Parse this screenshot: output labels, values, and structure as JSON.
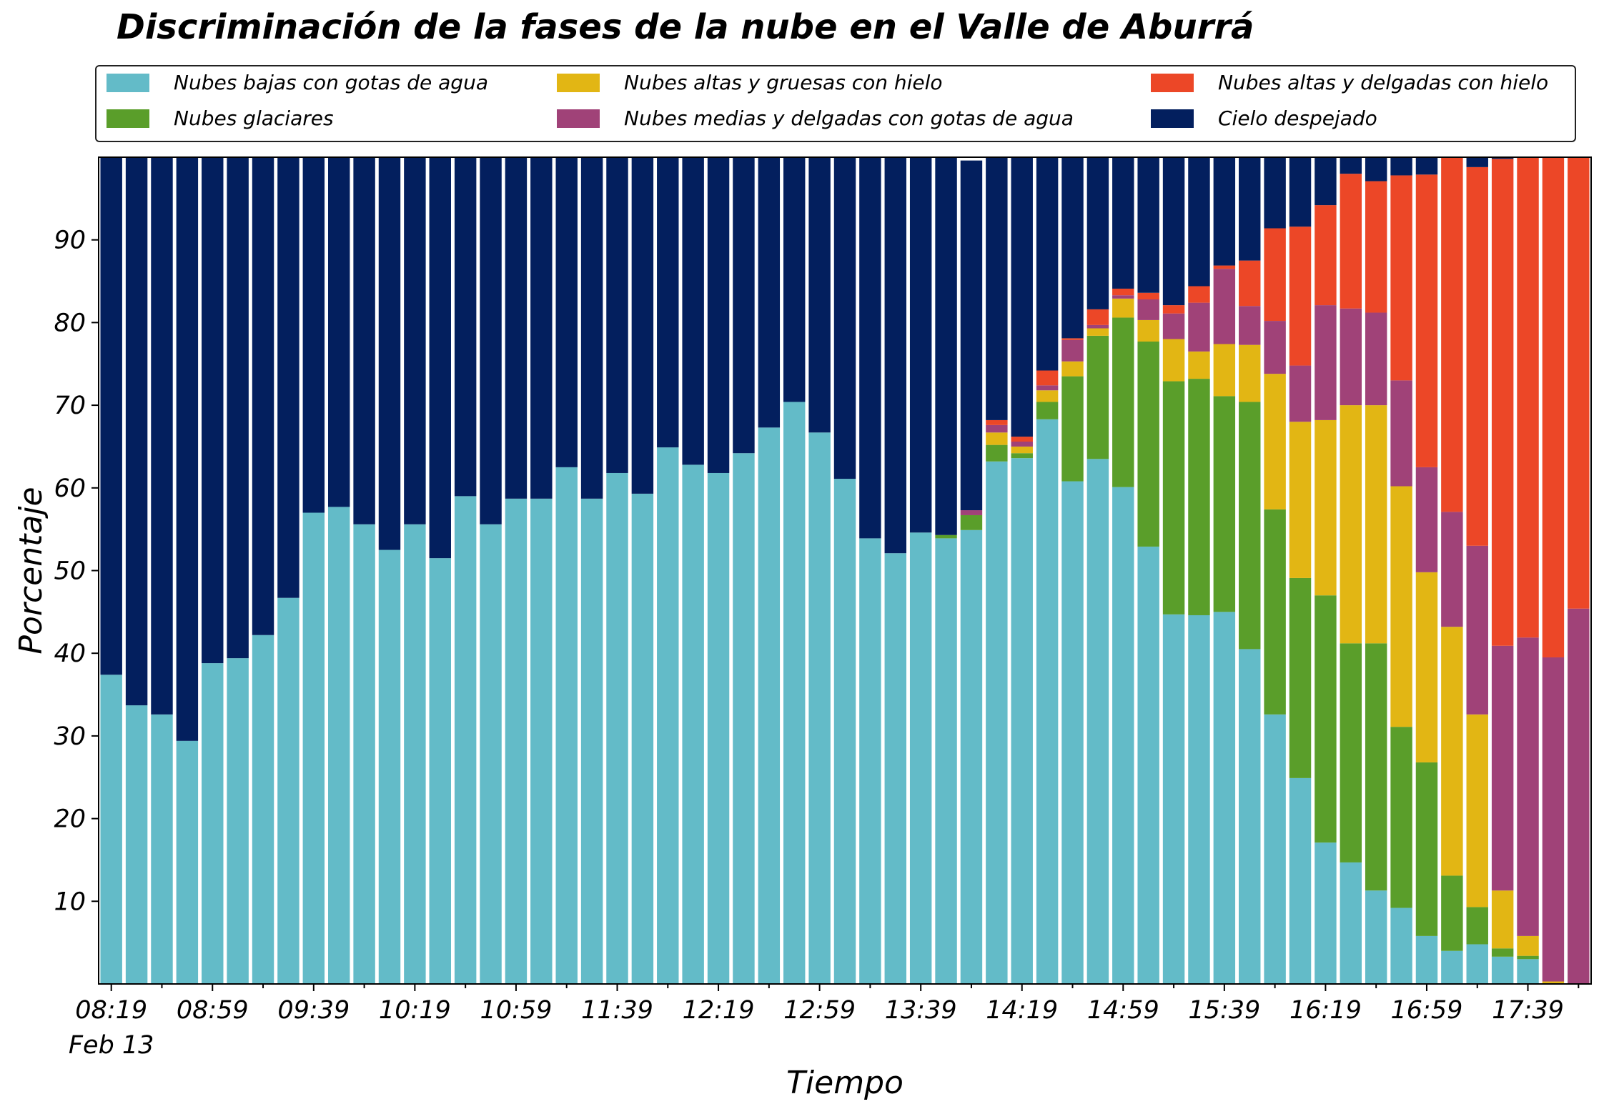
{
  "chart_data": {
    "type": "bar",
    "stacked": true,
    "title": "Discriminación de la fases de la nube en el Valle de Aburrá",
    "xlabel": "Tiempo",
    "ylabel": "Porcentaje",
    "ylim": [
      0,
      100
    ],
    "yticks": [
      10,
      20,
      30,
      40,
      50,
      60,
      70,
      80,
      90
    ],
    "xtick_labels": [
      "08:19",
      "08:59",
      "09:39",
      "10:19",
      "10:59",
      "11:39",
      "12:19",
      "12:59",
      "13:39",
      "14:19",
      "14:59",
      "15:39",
      "16:19",
      "16:59",
      "17:39"
    ],
    "xtick_every": 4,
    "date_label": "Feb 13",
    "legend_position": "top",
    "grid": false,
    "categories": [
      "08:19",
      "08:29",
      "08:39",
      "08:49",
      "08:59",
      "09:09",
      "09:19",
      "09:29",
      "09:39",
      "09:49",
      "09:59",
      "10:09",
      "10:19",
      "10:29",
      "10:39",
      "10:49",
      "10:59",
      "11:09",
      "11:19",
      "11:29",
      "11:39",
      "11:49",
      "11:59",
      "12:09",
      "12:19",
      "12:29",
      "12:39",
      "12:49",
      "12:59",
      "13:09",
      "13:19",
      "13:29",
      "13:39",
      "13:49",
      "13:59",
      "14:09",
      "14:19",
      "14:29",
      "14:39",
      "14:49",
      "14:59",
      "15:09",
      "15:19",
      "15:29",
      "15:39",
      "15:49",
      "15:59",
      "16:09",
      "16:19",
      "16:29",
      "16:39",
      "16:49",
      "16:59",
      "17:09",
      "17:19",
      "17:29",
      "17:39",
      "17:49",
      "17:59"
    ],
    "series": [
      {
        "name": "Nubes bajas con gotas de agua",
        "color": "#63bbc8",
        "values": [
          37.4,
          33.7,
          32.6,
          29.4,
          38.8,
          39.4,
          42.2,
          46.7,
          57.0,
          57.7,
          55.6,
          52.5,
          55.6,
          51.5,
          59.0,
          55.6,
          58.7,
          58.7,
          62.5,
          58.7,
          61.8,
          59.3,
          64.9,
          62.8,
          61.8,
          64.2,
          67.3,
          70.4,
          66.7,
          61.1,
          53.9,
          52.1,
          54.6,
          53.9,
          54.9,
          63.2,
          63.6,
          68.3,
          60.8,
          63.5,
          60.1,
          52.9,
          44.7,
          44.6,
          45.0,
          40.5,
          32.6,
          24.9,
          17.1,
          14.7,
          11.3,
          9.2,
          5.8,
          4.0,
          4.8,
          3.3,
          3.0,
          0.0,
          0.0
        ]
      },
      {
        "name": "Nubes glaciares",
        "color": "#5a9e2a",
        "values": [
          0,
          0,
          0,
          0,
          0,
          0,
          0,
          0,
          0,
          0,
          0,
          0,
          0,
          0,
          0,
          0,
          0,
          0,
          0,
          0,
          0,
          0,
          0,
          0,
          0,
          0,
          0,
          0,
          0,
          0,
          0,
          0,
          0,
          0.4,
          1.8,
          2.0,
          0.6,
          2.1,
          12.7,
          14.9,
          20.5,
          24.8,
          28.2,
          28.6,
          26.1,
          29.9,
          24.8,
          24.2,
          29.9,
          26.5,
          29.9,
          21.9,
          21.0,
          9.1,
          4.5,
          1.0,
          0.4,
          0.0,
          0.0
        ]
      },
      {
        "name": "Nubes altas y gruesas con hielo",
        "color": "#e2b614",
        "values": [
          0,
          0,
          0,
          0,
          0,
          0,
          0,
          0,
          0,
          0,
          0,
          0,
          0,
          0,
          0,
          0,
          0,
          0,
          0,
          0,
          0,
          0,
          0,
          0,
          0,
          0,
          0,
          0,
          0,
          0,
          0,
          0,
          0,
          0,
          0,
          1.5,
          0.8,
          1.4,
          1.8,
          0.9,
          2.3,
          2.6,
          5.1,
          3.3,
          6.3,
          6.9,
          16.4,
          18.9,
          21.2,
          28.8,
          28.8,
          29.1,
          23.0,
          30.1,
          23.3,
          7.0,
          2.4,
          0.3,
          0.0
        ]
      },
      {
        "name": "Nubes medias y delgadas con gotas de agua",
        "color": "#a04278",
        "values": [
          0,
          0,
          0,
          0,
          0,
          0,
          0,
          0,
          0,
          0,
          0,
          0,
          0,
          0,
          0,
          0,
          0,
          0,
          0,
          0,
          0,
          0,
          0,
          0,
          0,
          0,
          0,
          0,
          0,
          0,
          0,
          0,
          0,
          0,
          0.6,
          0.9,
          0.6,
          0.6,
          2.6,
          0.4,
          0.4,
          2.5,
          3.1,
          5.9,
          9.1,
          4.7,
          6.4,
          6.8,
          13.9,
          11.7,
          11.2,
          12.8,
          12.7,
          13.9,
          20.4,
          29.6,
          36.1,
          39.2,
          45.4
        ]
      },
      {
        "name": "Nubes altas y delgadas con hielo",
        "color": "#ec4727",
        "values": [
          0,
          0,
          0,
          0,
          0,
          0,
          0,
          0,
          0,
          0,
          0,
          0,
          0,
          0,
          0,
          0,
          0,
          0,
          0,
          0,
          0,
          0,
          0,
          0,
          0,
          0,
          0,
          0,
          0,
          0,
          0,
          0,
          0,
          0,
          0,
          0.6,
          0.6,
          1.8,
          0.2,
          1.9,
          0.8,
          0.8,
          1.0,
          2.0,
          0.4,
          5.5,
          11.2,
          16.8,
          12.1,
          16.3,
          15.9,
          24.8,
          35.4,
          43.1,
          45.8,
          58.9,
          58.1,
          60.5,
          54.6
        ]
      },
      {
        "name": "Cielo despejado",
        "color": "#031f5e",
        "values": [
          62.6,
          66.3,
          67.4,
          70.6,
          61.2,
          60.6,
          57.8,
          53.3,
          43.0,
          42.3,
          44.4,
          47.5,
          44.4,
          48.5,
          41.0,
          44.4,
          41.3,
          41.3,
          37.5,
          41.3,
          38.2,
          40.7,
          35.1,
          37.2,
          38.2,
          35.8,
          32.7,
          29.6,
          33.3,
          38.9,
          46.1,
          47.9,
          45.4,
          45.7,
          42.3,
          31.8,
          33.8,
          25.8,
          21.9,
          18.4,
          15.9,
          16.4,
          17.9,
          15.6,
          13.1,
          12.5,
          8.6,
          8.4,
          5.8,
          2.0,
          2.9,
          2.2,
          2.1,
          1.2,
          1.2,
          0.2,
          0.0,
          0.0,
          0.0
        ]
      }
    ]
  }
}
